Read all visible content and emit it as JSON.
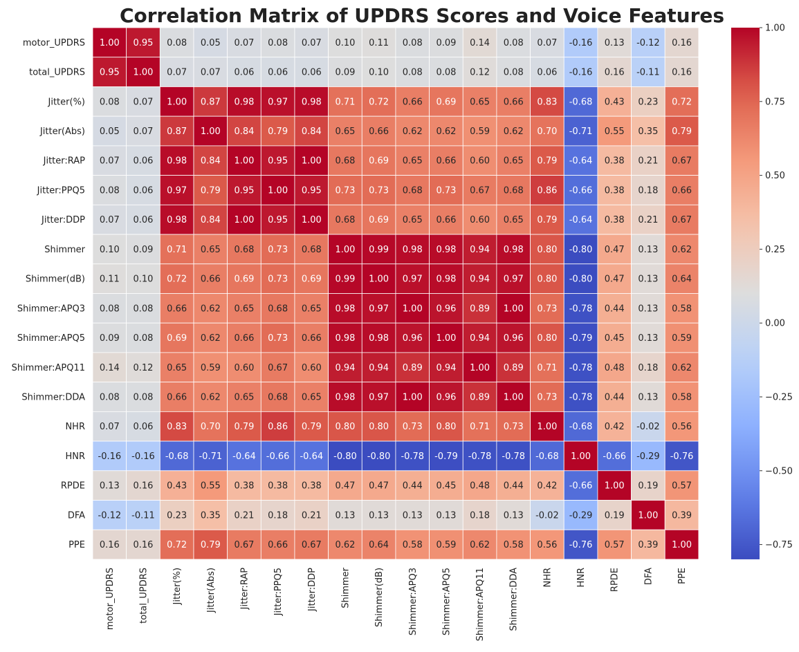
{
  "chart_data": {
    "type": "heatmap",
    "title": "Correlation Matrix of UPDRS Scores and Voice Features",
    "labels": [
      "motor_UPDRS",
      "total_UPDRS",
      "Jitter(%)",
      "Jitter(Abs)",
      "Jitter:RAP",
      "Jitter:PPQ5",
      "Jitter:DDP",
      "Shimmer",
      "Shimmer(dB)",
      "Shimmer:APQ3",
      "Shimmer:APQ5",
      "Shimmer:APQ11",
      "Shimmer:DDA",
      "NHR",
      "HNR",
      "RPDE",
      "DFA",
      "PPE"
    ],
    "matrix": [
      [
        1.0,
        0.95,
        0.08,
        0.05,
        0.07,
        0.08,
        0.07,
        0.1,
        0.11,
        0.08,
        0.09,
        0.14,
        0.08,
        0.07,
        -0.16,
        0.13,
        -0.12,
        0.16
      ],
      [
        0.95,
        1.0,
        0.07,
        0.07,
        0.06,
        0.06,
        0.06,
        0.09,
        0.1,
        0.08,
        0.08,
        0.12,
        0.08,
        0.06,
        -0.16,
        0.16,
        -0.11,
        0.16
      ],
      [
        0.08,
        0.07,
        1.0,
        0.87,
        0.98,
        0.97,
        0.98,
        0.71,
        0.72,
        0.66,
        0.69,
        0.65,
        0.66,
        0.83,
        -0.68,
        0.43,
        0.23,
        0.72
      ],
      [
        0.05,
        0.07,
        0.87,
        1.0,
        0.84,
        0.79,
        0.84,
        0.65,
        0.66,
        0.62,
        0.62,
        0.59,
        0.62,
        0.7,
        -0.71,
        0.55,
        0.35,
        0.79
      ],
      [
        0.07,
        0.06,
        0.98,
        0.84,
        1.0,
        0.95,
        1.0,
        0.68,
        0.69,
        0.65,
        0.66,
        0.6,
        0.65,
        0.79,
        -0.64,
        0.38,
        0.21,
        0.67
      ],
      [
        0.08,
        0.06,
        0.97,
        0.79,
        0.95,
        1.0,
        0.95,
        0.73,
        0.73,
        0.68,
        0.73,
        0.67,
        0.68,
        0.86,
        -0.66,
        0.38,
        0.18,
        0.66
      ],
      [
        0.07,
        0.06,
        0.98,
        0.84,
        1.0,
        0.95,
        1.0,
        0.68,
        0.69,
        0.65,
        0.66,
        0.6,
        0.65,
        0.79,
        -0.64,
        0.38,
        0.21,
        0.67
      ],
      [
        0.1,
        0.09,
        0.71,
        0.65,
        0.68,
        0.73,
        0.68,
        1.0,
        0.99,
        0.98,
        0.98,
        0.94,
        0.98,
        0.8,
        -0.8,
        0.47,
        0.13,
        0.62
      ],
      [
        0.11,
        0.1,
        0.72,
        0.66,
        0.69,
        0.73,
        0.69,
        0.99,
        1.0,
        0.97,
        0.98,
        0.94,
        0.97,
        0.8,
        -0.8,
        0.47,
        0.13,
        0.64
      ],
      [
        0.08,
        0.08,
        0.66,
        0.62,
        0.65,
        0.68,
        0.65,
        0.98,
        0.97,
        1.0,
        0.96,
        0.89,
        1.0,
        0.73,
        -0.78,
        0.44,
        0.13,
        0.58
      ],
      [
        0.09,
        0.08,
        0.69,
        0.62,
        0.66,
        0.73,
        0.66,
        0.98,
        0.98,
        0.96,
        1.0,
        0.94,
        0.96,
        0.8,
        -0.79,
        0.45,
        0.13,
        0.59
      ],
      [
        0.14,
        0.12,
        0.65,
        0.59,
        0.6,
        0.67,
        0.6,
        0.94,
        0.94,
        0.89,
        0.94,
        1.0,
        0.89,
        0.71,
        -0.78,
        0.48,
        0.18,
        0.62
      ],
      [
        0.08,
        0.08,
        0.66,
        0.62,
        0.65,
        0.68,
        0.65,
        0.98,
        0.97,
        1.0,
        0.96,
        0.89,
        1.0,
        0.73,
        -0.78,
        0.44,
        0.13,
        0.58
      ],
      [
        0.07,
        0.06,
        0.83,
        0.7,
        0.79,
        0.86,
        0.79,
        0.8,
        0.8,
        0.73,
        0.8,
        0.71,
        0.73,
        1.0,
        -0.68,
        0.42,
        -0.02,
        0.56
      ],
      [
        -0.16,
        -0.16,
        -0.68,
        -0.71,
        -0.64,
        -0.66,
        -0.64,
        -0.8,
        -0.8,
        -0.78,
        -0.79,
        -0.78,
        -0.78,
        -0.68,
        1.0,
        -0.66,
        -0.29,
        -0.76
      ],
      [
        0.13,
        0.16,
        0.43,
        0.55,
        0.38,
        0.38,
        0.38,
        0.47,
        0.47,
        0.44,
        0.45,
        0.48,
        0.44,
        0.42,
        -0.66,
        1.0,
        0.19,
        0.57
      ],
      [
        -0.12,
        -0.11,
        0.23,
        0.35,
        0.21,
        0.18,
        0.21,
        0.13,
        0.13,
        0.13,
        0.13,
        0.18,
        0.13,
        -0.02,
        -0.29,
        0.19,
        1.0,
        0.39
      ],
      [
        0.16,
        0.16,
        0.72,
        0.79,
        0.67,
        0.66,
        0.67,
        0.62,
        0.64,
        0.58,
        0.59,
        0.62,
        0.58,
        0.56,
        -0.76,
        0.57,
        0.39,
        1.0
      ]
    ],
    "value_format": "2 decimals",
    "colormap": "coolwarm",
    "vmin": -0.8,
    "vmax": 1.0,
    "colorbar_ticks": [
      "1.00",
      "0.75",
      "0.50",
      "0.25",
      "0.00",
      "−0.25",
      "−0.50",
      "−0.75"
    ],
    "colorbar_tick_values": [
      1.0,
      0.75,
      0.5,
      0.25,
      0.0,
      -0.25,
      -0.5,
      -0.75
    ],
    "colorbar_placement": "right",
    "grid": false
  }
}
